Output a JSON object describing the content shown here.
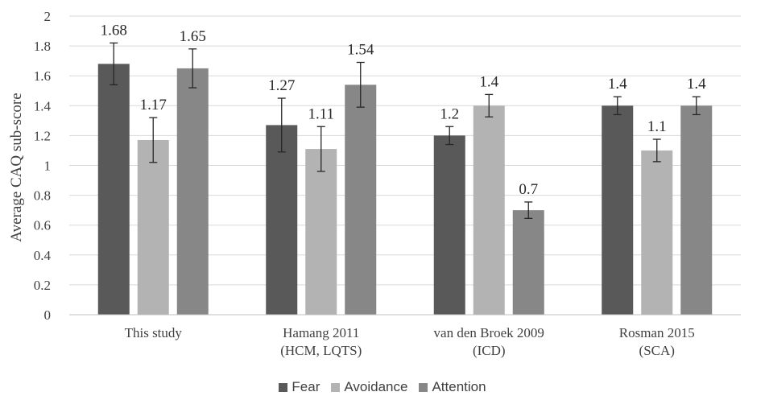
{
  "chart_data": {
    "type": "bar",
    "title": "",
    "xlabel": "",
    "ylabel": "Average CAQ sub-score",
    "ylim": [
      0,
      2
    ],
    "yticks": [
      "0",
      "0.2",
      "0.4",
      "0.6",
      "0.8",
      "1",
      "1.2",
      "1.4",
      "1.6",
      "1.8",
      "2"
    ],
    "grid": true,
    "legend_position": "bottom",
    "categories": [
      [
        "This study"
      ],
      [
        "Hamang 2011",
        "(HCM, LQTS)"
      ],
      [
        "van den Broek 2009",
        "(ICD)"
      ],
      [
        "Rosman 2015",
        "(SCA)"
      ]
    ],
    "series": [
      {
        "name": "Fear",
        "color": "#595959",
        "values": [
          1.68,
          1.27,
          1.2,
          1.4
        ],
        "labels": [
          "1.68",
          "1.27",
          "1.2",
          "1.4"
        ],
        "errors": [
          0.14,
          0.18,
          0.06,
          0.06
        ]
      },
      {
        "name": "Avoidance",
        "color": "#b3b3b3",
        "values": [
          1.17,
          1.11,
          1.4,
          1.1
        ],
        "labels": [
          "1.17",
          "1.11",
          "1.4",
          "1.1"
        ],
        "errors": [
          0.15,
          0.15,
          0.075,
          0.075
        ]
      },
      {
        "name": "Attention",
        "color": "#878787",
        "values": [
          1.65,
          1.54,
          0.7,
          1.4
        ],
        "labels": [
          "1.65",
          "1.54",
          "0.7",
          "1.4"
        ],
        "errors": [
          0.13,
          0.15,
          0.055,
          0.06
        ]
      }
    ]
  }
}
